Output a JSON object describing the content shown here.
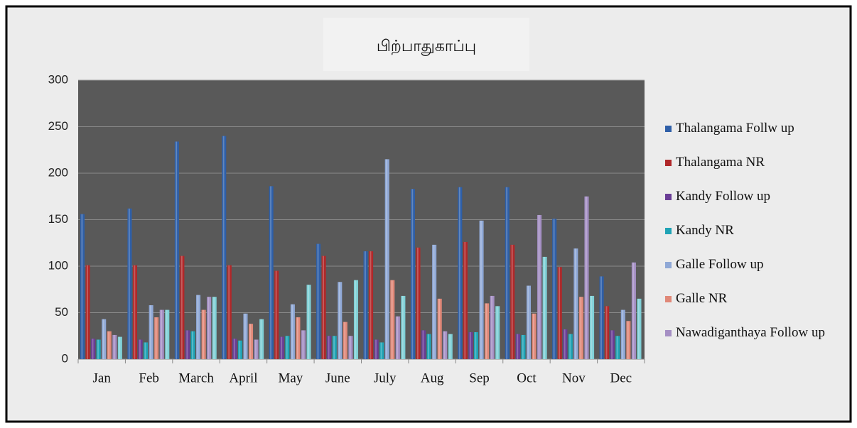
{
  "chart_data": {
    "type": "bar",
    "title": "பிற்பாதுகாப்பு",
    "categories": [
      "Jan",
      "Feb",
      "March",
      "April",
      "May",
      "June",
      "July",
      "Aug",
      "Sep",
      "Oct",
      "Nov",
      "Dec"
    ],
    "series": [
      {
        "name": "Thalangama Follw up",
        "color": "#2e5fa8",
        "values": [
          156,
          162,
          234,
          240,
          186,
          124,
          116,
          183,
          185,
          185,
          151,
          89
        ]
      },
      {
        "name": "Thalangama NR",
        "color": "#b0282a",
        "values": [
          101,
          101,
          111,
          101,
          95,
          111,
          116,
          120,
          126,
          123,
          99,
          57
        ]
      },
      {
        "name": "Kandy Follow up",
        "color": "#6a3d96",
        "values": [
          22,
          21,
          31,
          22,
          24,
          25,
          21,
          31,
          29,
          27,
          32,
          31
        ]
      },
      {
        "name": "Kandy NR",
        "color": "#1fa3b5",
        "values": [
          21,
          18,
          30,
          20,
          25,
          25,
          18,
          27,
          29,
          26,
          27,
          25
        ]
      },
      {
        "name": "Galle Follow up",
        "color": "#8fa8d6",
        "values": [
          43,
          58,
          69,
          49,
          59,
          83,
          215,
          123,
          149,
          79,
          119,
          53
        ]
      },
      {
        "name": "Galle NR",
        "color": "#e08878",
        "values": [
          30,
          45,
          53,
          38,
          45,
          40,
          85,
          65,
          60,
          49,
          67,
          41
        ]
      },
      {
        "name": "Nawadiganthaya Follow up",
        "color": "#a58fc4",
        "values": [
          26,
          53,
          67,
          21,
          31,
          25,
          46,
          30,
          68,
          155,
          175,
          104
        ]
      },
      {
        "color": "#7fd0d6",
        "values": [
          24,
          53,
          67,
          43,
          80,
          85,
          68,
          27,
          57,
          110,
          68,
          65
        ]
      }
    ],
    "ylim": [
      0,
      300
    ],
    "yticks": [
      0,
      50,
      100,
      150,
      200,
      250,
      300
    ],
    "grid": true
  }
}
